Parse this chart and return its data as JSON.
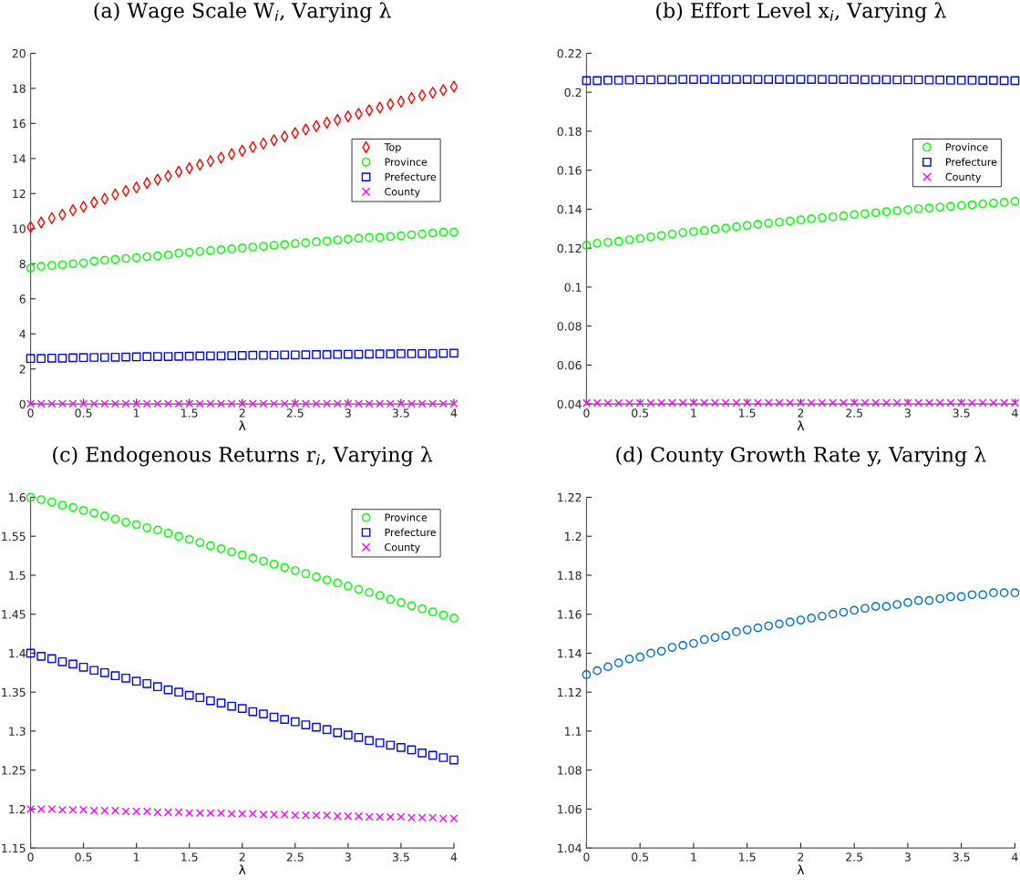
{
  "chart_data": [
    {
      "type": "scatter",
      "title": "(a) Wage Scale W$_{i}$, Varying λ",
      "xlabel": "λ",
      "xlim": [
        0,
        4
      ],
      "xticks": [
        0,
        0.5,
        1,
        1.5,
        2,
        2.5,
        3,
        3.5,
        4
      ],
      "ylim": [
        0,
        20
      ],
      "yticks": [
        0,
        2,
        4,
        6,
        8,
        10,
        12,
        14,
        16,
        18,
        20
      ],
      "legend": "right",
      "grid": false,
      "x": [
        0,
        0.1,
        0.2,
        0.3,
        0.4,
        0.5,
        0.6,
        0.7,
        0.8,
        0.9,
        1,
        1.1,
        1.2,
        1.3,
        1.4,
        1.5,
        1.6,
        1.7,
        1.8,
        1.9,
        2,
        2.1,
        2.2,
        2.3,
        2.4,
        2.5,
        2.6,
        2.7,
        2.8,
        2.9,
        3,
        3.1,
        3.2,
        3.3,
        3.4,
        3.5,
        3.6,
        3.7,
        3.8,
        3.9,
        4
      ],
      "series": [
        {
          "name": "Top",
          "color": "#ff0000",
          "marker": "diamond",
          "values": [
            10.1,
            10.35,
            10.6,
            10.8,
            11.05,
            11.25,
            11.5,
            11.7,
            11.95,
            12.15,
            12.35,
            12.6,
            12.8,
            13.0,
            13.25,
            13.45,
            13.65,
            13.85,
            14.05,
            14.25,
            14.45,
            14.65,
            14.85,
            15.05,
            15.25,
            15.45,
            15.65,
            15.85,
            16.05,
            16.2,
            16.4,
            16.55,
            16.75,
            16.9,
            17.1,
            17.25,
            17.45,
            17.6,
            17.75,
            17.9,
            18.1
          ]
        },
        {
          "name": "Province",
          "color": "#00ff00",
          "marker": "circle",
          "values": [
            7.75,
            7.85,
            7.9,
            7.95,
            8.0,
            8.05,
            8.15,
            8.2,
            8.25,
            8.3,
            8.35,
            8.4,
            8.45,
            8.5,
            8.6,
            8.65,
            8.7,
            8.75,
            8.8,
            8.85,
            8.9,
            8.95,
            9.0,
            9.05,
            9.1,
            9.15,
            9.2,
            9.25,
            9.3,
            9.35,
            9.4,
            9.45,
            9.5,
            9.5,
            9.55,
            9.6,
            9.65,
            9.7,
            9.75,
            9.8,
            9.8
          ]
        },
        {
          "name": "Prefecture",
          "color": "#0000ff",
          "marker": "square",
          "values": [
            2.6,
            2.6,
            2.62,
            2.62,
            2.64,
            2.65,
            2.66,
            2.66,
            2.67,
            2.68,
            2.69,
            2.7,
            2.71,
            2.71,
            2.72,
            2.73,
            2.74,
            2.75,
            2.75,
            2.76,
            2.77,
            2.78,
            2.78,
            2.79,
            2.8,
            2.8,
            2.81,
            2.82,
            2.82,
            2.83,
            2.84,
            2.84,
            2.85,
            2.86,
            2.86,
            2.87,
            2.87,
            2.88,
            2.88,
            2.89,
            2.9
          ]
        },
        {
          "name": "County",
          "color": "#ff00ff",
          "marker": "cross",
          "values": [
            0.02,
            0.02,
            0.02,
            0.02,
            0.02,
            0.02,
            0.02,
            0.02,
            0.02,
            0.02,
            0.02,
            0.02,
            0.02,
            0.02,
            0.02,
            0.02,
            0.02,
            0.02,
            0.02,
            0.02,
            0.02,
            0.02,
            0.02,
            0.02,
            0.02,
            0.02,
            0.02,
            0.02,
            0.02,
            0.02,
            0.02,
            0.02,
            0.02,
            0.02,
            0.02,
            0.02,
            0.02,
            0.02,
            0.02,
            0.02,
            0.02
          ]
        }
      ]
    },
    {
      "type": "scatter",
      "title": "(b) Effort Level x$_{i}$, Varying λ",
      "xlabel": "λ",
      "xlim": [
        0,
        4
      ],
      "xticks": [
        0,
        0.5,
        1,
        1.5,
        2,
        2.5,
        3,
        3.5,
        4
      ],
      "ylim": [
        0.04,
        0.22
      ],
      "yticks": [
        0.04,
        0.06,
        0.08,
        0.1,
        0.12,
        0.14,
        0.16,
        0.18,
        0.2,
        0.22
      ],
      "legend": "right",
      "grid": false,
      "x": [
        0,
        0.1,
        0.2,
        0.3,
        0.4,
        0.5,
        0.6,
        0.7,
        0.8,
        0.9,
        1,
        1.1,
        1.2,
        1.3,
        1.4,
        1.5,
        1.6,
        1.7,
        1.8,
        1.9,
        2,
        2.1,
        2.2,
        2.3,
        2.4,
        2.5,
        2.6,
        2.7,
        2.8,
        2.9,
        3,
        3.1,
        3.2,
        3.3,
        3.4,
        3.5,
        3.6,
        3.7,
        3.8,
        3.9,
        4
      ],
      "series": [
        {
          "name": "Province",
          "color": "#00ff00",
          "marker": "circle",
          "values": [
            0.1215,
            0.1225,
            0.123,
            0.1235,
            0.1243,
            0.125,
            0.1258,
            0.1265,
            0.1272,
            0.128,
            0.1285,
            0.129,
            0.1297,
            0.1303,
            0.131,
            0.1316,
            0.1322,
            0.1328,
            0.1334,
            0.134,
            0.1345,
            0.1351,
            0.1356,
            0.1361,
            0.1366,
            0.1372,
            0.1377,
            0.1382,
            0.1387,
            0.1392,
            0.1397,
            0.1402,
            0.1406,
            0.141,
            0.1415,
            0.1419,
            0.1423,
            0.1427,
            0.1431,
            0.1435,
            0.144
          ]
        },
        {
          "name": "Prefecture",
          "color": "#0000ff",
          "marker": "square",
          "values": [
            0.206,
            0.206,
            0.2062,
            0.2062,
            0.2063,
            0.2064,
            0.2064,
            0.2065,
            0.2065,
            0.2066,
            0.2066,
            0.2066,
            0.2066,
            0.2066,
            0.2066,
            0.2066,
            0.2066,
            0.2066,
            0.2066,
            0.2066,
            0.2066,
            0.2066,
            0.2066,
            0.2066,
            0.2066,
            0.2066,
            0.2065,
            0.2065,
            0.2065,
            0.2064,
            0.2064,
            0.2064,
            0.2063,
            0.2063,
            0.2062,
            0.2062,
            0.2062,
            0.2061,
            0.2061,
            0.206,
            0.206
          ]
        },
        {
          "name": "County",
          "color": "#ff00ff",
          "marker": "cross",
          "values": [
            0.0405,
            0.0405,
            0.0405,
            0.0405,
            0.0405,
            0.0405,
            0.0405,
            0.0406,
            0.0406,
            0.0406,
            0.0406,
            0.0406,
            0.0406,
            0.0406,
            0.0406,
            0.0406,
            0.0406,
            0.0406,
            0.0406,
            0.0406,
            0.0406,
            0.0406,
            0.0406,
            0.0406,
            0.0406,
            0.0406,
            0.0406,
            0.0406,
            0.0406,
            0.0406,
            0.0406,
            0.0406,
            0.0406,
            0.0406,
            0.0406,
            0.0406,
            0.0406,
            0.0406,
            0.0406,
            0.0406,
            0.0406
          ]
        }
      ]
    },
    {
      "type": "scatter",
      "title": "(c) Endogenous Returns r$_{i}$, Varying λ",
      "xlabel": "λ",
      "xlim": [
        0,
        4
      ],
      "xticks": [
        0,
        0.5,
        1,
        1.5,
        2,
        2.5,
        3,
        3.5,
        4
      ],
      "ylim": [
        1.15,
        1.6
      ],
      "yticks": [
        1.15,
        1.2,
        1.25,
        1.3,
        1.35,
        1.4,
        1.45,
        1.5,
        1.55,
        1.6
      ],
      "legend": "top right",
      "grid": false,
      "x": [
        0,
        0.1,
        0.2,
        0.3,
        0.4,
        0.5,
        0.6,
        0.7,
        0.8,
        0.9,
        1,
        1.1,
        1.2,
        1.3,
        1.4,
        1.5,
        1.6,
        1.7,
        1.8,
        1.9,
        2,
        2.1,
        2.2,
        2.3,
        2.4,
        2.5,
        2.6,
        2.7,
        2.8,
        2.9,
        3,
        3.1,
        3.2,
        3.3,
        3.4,
        3.5,
        3.6,
        3.7,
        3.8,
        3.9,
        4
      ],
      "series": [
        {
          "name": "Province",
          "color": "#00ff00",
          "marker": "circle",
          "values": [
            1.6,
            1.597,
            1.594,
            1.59,
            1.587,
            1.583,
            1.58,
            1.576,
            1.572,
            1.568,
            1.565,
            1.561,
            1.558,
            1.554,
            1.55,
            1.546,
            1.542,
            1.538,
            1.534,
            1.53,
            1.526,
            1.522,
            1.518,
            1.514,
            1.51,
            1.506,
            1.502,
            1.498,
            1.494,
            1.49,
            1.486,
            1.482,
            1.478,
            1.474,
            1.469,
            1.465,
            1.461,
            1.457,
            1.453,
            1.449,
            1.445
          ]
        },
        {
          "name": "Prefecture",
          "color": "#0000ff",
          "marker": "square",
          "values": [
            1.4,
            1.396,
            1.393,
            1.389,
            1.386,
            1.382,
            1.378,
            1.375,
            1.371,
            1.368,
            1.364,
            1.361,
            1.357,
            1.353,
            1.35,
            1.346,
            1.343,
            1.339,
            1.336,
            1.332,
            1.329,
            1.325,
            1.322,
            1.318,
            1.315,
            1.312,
            1.308,
            1.305,
            1.302,
            1.298,
            1.295,
            1.292,
            1.288,
            1.285,
            1.282,
            1.279,
            1.276,
            1.272,
            1.269,
            1.266,
            1.263
          ]
        },
        {
          "name": "County",
          "color": "#ff00ff",
          "marker": "cross",
          "values": [
            1.2,
            1.2,
            1.2,
            1.199,
            1.199,
            1.199,
            1.198,
            1.198,
            1.198,
            1.197,
            1.197,
            1.197,
            1.196,
            1.196,
            1.196,
            1.195,
            1.195,
            1.195,
            1.195,
            1.194,
            1.194,
            1.194,
            1.193,
            1.193,
            1.193,
            1.192,
            1.192,
            1.192,
            1.192,
            1.191,
            1.191,
            1.191,
            1.19,
            1.19,
            1.19,
            1.19,
            1.189,
            1.189,
            1.189,
            1.188,
            1.188
          ]
        }
      ]
    },
    {
      "type": "scatter",
      "title": "(d) County Growth Rate y, Varying λ",
      "xlabel": "λ",
      "xlim": [
        0,
        4
      ],
      "xticks": [
        0,
        0.5,
        1,
        1.5,
        2,
        2.5,
        3,
        3.5,
        4
      ],
      "ylim": [
        1.04,
        1.22
      ],
      "yticks": [
        1.04,
        1.06,
        1.08,
        1.1,
        1.12,
        1.14,
        1.16,
        1.18,
        1.2,
        1.22
      ],
      "grid": false,
      "x": [
        0,
        0.1,
        0.2,
        0.3,
        0.4,
        0.5,
        0.6,
        0.7,
        0.8,
        0.9,
        1,
        1.1,
        1.2,
        1.3,
        1.4,
        1.5,
        1.6,
        1.7,
        1.8,
        1.9,
        2,
        2.1,
        2.2,
        2.3,
        2.4,
        2.5,
        2.6,
        2.7,
        2.8,
        2.9,
        3,
        3.1,
        3.2,
        3.3,
        3.4,
        3.5,
        3.6,
        3.7,
        3.8,
        3.9,
        4
      ],
      "series": [
        {
          "color": "#0072bd",
          "marker": "circle",
          "values": [
            1.129,
            1.131,
            1.133,
            1.135,
            1.137,
            1.138,
            1.14,
            1.141,
            1.143,
            1.144,
            1.145,
            1.147,
            1.148,
            1.149,
            1.151,
            1.152,
            1.153,
            1.154,
            1.155,
            1.156,
            1.157,
            1.158,
            1.159,
            1.16,
            1.161,
            1.162,
            1.163,
            1.164,
            1.164,
            1.165,
            1.166,
            1.167,
            1.167,
            1.168,
            1.169,
            1.169,
            1.17,
            1.17,
            1.171,
            1.171,
            1.171
          ]
        }
      ]
    }
  ]
}
